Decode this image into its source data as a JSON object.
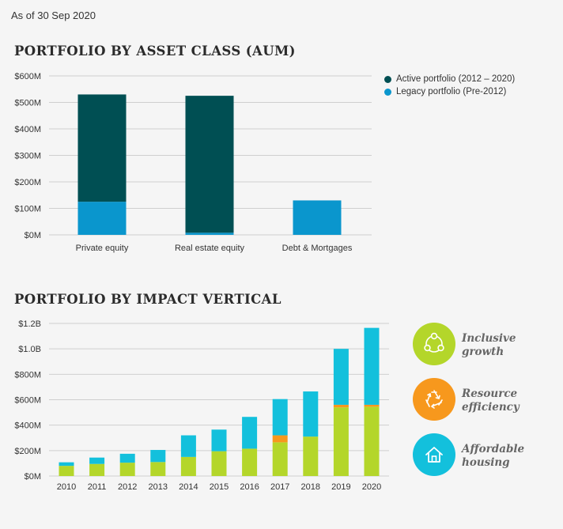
{
  "as_of": "As of 30 Sep 2020",
  "colors": {
    "active": "#004f53",
    "legacy": "#0a96cd",
    "inclusive": "#b4d62a",
    "resource": "#f7981d",
    "affordable": "#13c0dc",
    "grid": "#cfcfcf"
  },
  "chart_data": [
    {
      "type": "bar",
      "stacked": true,
      "title": "PORTFOLIO BY ASSET CLASS (AUM)",
      "categories": [
        "Private equity",
        "Real estate equity",
        "Debt & Mortgages"
      ],
      "series": [
        {
          "name": "Legacy portfolio (Pre-2012)",
          "values": [
            125,
            8,
            130
          ]
        },
        {
          "name": "Active portfolio (2012 – 2020)",
          "values": [
            405,
            517,
            0
          ]
        }
      ],
      "ylim": [
        0,
        600
      ],
      "yticks": [
        0,
        100,
        200,
        300,
        400,
        500,
        600
      ],
      "ytick_labels": [
        "$0M",
        "$100M",
        "$200M",
        "$300M",
        "$400M",
        "$500M",
        "$600M"
      ],
      "grid": true,
      "legend": "top-right"
    },
    {
      "type": "bar",
      "stacked": true,
      "title": "PORTFOLIO BY IMPACT VERTICAL",
      "categories": [
        "2010",
        "2011",
        "2012",
        "2013",
        "2014",
        "2015",
        "2016",
        "2017",
        "2018",
        "2019",
        "2020"
      ],
      "series": [
        {
          "name": "Inclusive growth",
          "values": [
            80,
            95,
            105,
            110,
            150,
            195,
            215,
            265,
            310,
            540,
            545
          ]
        },
        {
          "name": "Resource efficiency",
          "values": [
            0,
            0,
            0,
            0,
            0,
            0,
            0,
            55,
            0,
            20,
            15
          ]
        },
        {
          "name": "Affordable housing",
          "values": [
            28,
            50,
            70,
            95,
            170,
            170,
            250,
            285,
            355,
            440,
            605
          ]
        }
      ],
      "ylim": [
        0,
        1200
      ],
      "yticks": [
        0,
        200,
        400,
        600,
        800,
        1000,
        1200
      ],
      "ytick_labels": [
        "$0M",
        "$200M",
        "$400M",
        "$600M",
        "$800M",
        "$1.0B",
        "$1.2B"
      ],
      "grid": true,
      "legend": "right"
    }
  ],
  "legend2": [
    {
      "line1": "Inclusive",
      "line2": "growth",
      "icon": "inclusive-growth-icon"
    },
    {
      "line1": "Resource",
      "line2": "efficiency",
      "icon": "recycle-icon"
    },
    {
      "line1": "Affordable",
      "line2": "housing",
      "icon": "house-icon"
    }
  ]
}
